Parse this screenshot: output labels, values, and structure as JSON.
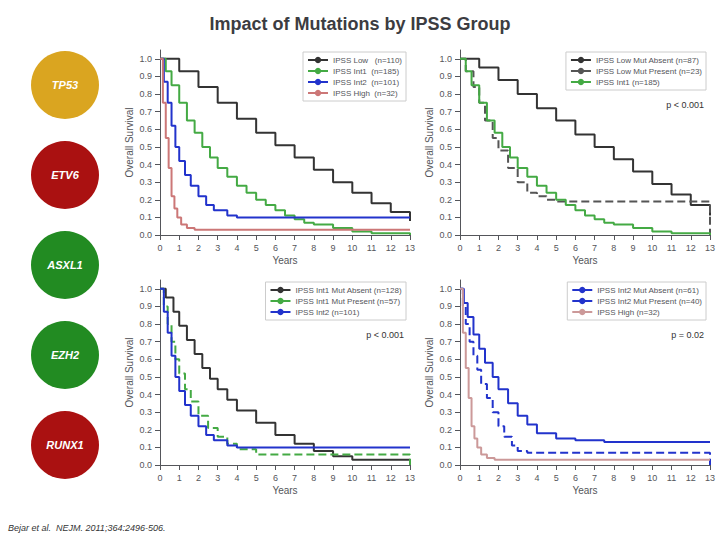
{
  "title": "Impact of Mutations by IPSS Group",
  "annotations": [
    {
      "text": "TP53",
      "marker": "circle",
      "color": "#DAA520"
    },
    {
      "text": "ETV6",
      "marker": "circle",
      "color": "#AA1111"
    },
    {
      "text": "ASXL1",
      "marker": "circle",
      "color": "#228B22"
    },
    {
      "text": "EZH2",
      "marker": "circle",
      "color": "#228B22"
    },
    {
      "text": "RUNX1",
      "marker": "circle",
      "color": "#AA1111"
    },
    {
      "text": "Bejar et al.  NEJM. 2011;364:2496-506."
    }
  ],
  "chart_data": [
    {
      "type": "step",
      "xlabel": "Years",
      "ylabel": "Overall Survival",
      "xlim": [
        0,
        13
      ],
      "ylim": [
        0.0,
        1.05
      ],
      "xticks": [
        0,
        1,
        2,
        3,
        4,
        5,
        6,
        7,
        8,
        9,
        10,
        11,
        12,
        13
      ],
      "yticks": [
        {
          "value": 0.0,
          "label": "0.0"
        },
        {
          "value": 0.1,
          "label": "0.1"
        },
        {
          "value": 0.2,
          "label": "0.2"
        },
        {
          "value": 0.3,
          "label": "0.3"
        },
        {
          "value": 0.4,
          "label": "0.4"
        },
        {
          "value": 0.5,
          "label": "0.5"
        },
        {
          "value": 0.6,
          "label": "0.6"
        },
        {
          "value": 0.7,
          "label": "0.7"
        },
        {
          "value": 0.8,
          "label": "0.8"
        },
        {
          "value": 0.9,
          "label": "0.9"
        },
        {
          "value": 1.0,
          "label": "1.0"
        }
      ],
      "grid": false,
      "legend": "upper right",
      "series": [
        {
          "name": "IPSS Low   (n=110)",
          "color": "#333333",
          "line_style": "solid",
          "x": [
            0,
            1,
            2,
            3,
            4,
            5,
            6,
            7,
            8,
            9,
            10,
            11,
            12,
            13
          ],
          "values": [
            1.0,
            0.93,
            0.84,
            0.75,
            0.66,
            0.58,
            0.51,
            0.44,
            0.37,
            0.3,
            0.24,
            0.18,
            0.13,
            0.08
          ]
        },
        {
          "name": "IPSS Int1  (n=185)",
          "color": "#44AA44",
          "line_style": "solid",
          "x": [
            0,
            0.3,
            0.6,
            1,
            1.4,
            1.8,
            2.2,
            2.6,
            3,
            3.5,
            4,
            4.5,
            5,
            5.5,
            6,
            6.5,
            7,
            7.5,
            8,
            9,
            10,
            11,
            12,
            13
          ],
          "values": [
            1.0,
            0.93,
            0.85,
            0.75,
            0.65,
            0.58,
            0.5,
            0.44,
            0.38,
            0.33,
            0.28,
            0.24,
            0.2,
            0.17,
            0.14,
            0.11,
            0.09,
            0.07,
            0.06,
            0.04,
            0.02,
            0.01,
            0.01,
            0.0
          ]
        },
        {
          "name": "IPSS Int2  (n=101)",
          "color": "#2233CC",
          "line_style": "solid",
          "x": [
            0,
            0.2,
            0.4,
            0.6,
            0.8,
            1.0,
            1.3,
            1.6,
            2.0,
            2.4,
            2.8,
            3.5,
            4,
            5,
            6,
            7,
            8,
            13
          ],
          "values": [
            1.0,
            0.87,
            0.75,
            0.62,
            0.5,
            0.42,
            0.34,
            0.28,
            0.22,
            0.17,
            0.14,
            0.11,
            0.1,
            0.1,
            0.1,
            0.1,
            0.1,
            0.1
          ]
        },
        {
          "name": "IPSS High  (n=32)",
          "color": "#CC7777",
          "line_style": "solid",
          "x": [
            0,
            0.15,
            0.3,
            0.45,
            0.6,
            0.75,
            0.9,
            1.1,
            1.4,
            1.8,
            2.5,
            3,
            13
          ],
          "values": [
            1.0,
            0.75,
            0.55,
            0.38,
            0.22,
            0.15,
            0.1,
            0.06,
            0.04,
            0.03,
            0.03,
            0.03,
            0.03
          ]
        }
      ]
    },
    {
      "type": "step",
      "xlabel": "Years",
      "ylabel": "Overall Survival",
      "xlim": [
        0,
        13
      ],
      "ylim": [
        0.0,
        1.05
      ],
      "xticks": [
        0,
        1,
        2,
        3,
        4,
        5,
        6,
        7,
        8,
        9,
        10,
        11,
        12,
        13
      ],
      "yticks": [
        {
          "value": 0.0,
          "label": "0.0"
        },
        {
          "value": 0.1,
          "label": "0.1"
        },
        {
          "value": 0.2,
          "label": "0.2"
        },
        {
          "value": 0.3,
          "label": "0.3"
        },
        {
          "value": 0.4,
          "label": "0.4"
        },
        {
          "value": 0.5,
          "label": "0.5"
        },
        {
          "value": 0.6,
          "label": "0.6"
        },
        {
          "value": 0.7,
          "label": "0.7"
        },
        {
          "value": 0.8,
          "label": "0.8"
        },
        {
          "value": 0.9,
          "label": "0.9"
        },
        {
          "value": 1.0,
          "label": "1.0"
        }
      ],
      "grid": false,
      "legend": "upper right",
      "annotations": [
        {
          "text": "p < 0.001"
        }
      ],
      "series": [
        {
          "name": "IPSS Low Mut Absent (n=87)",
          "color": "#333333",
          "line_style": "solid",
          "x": [
            0,
            1,
            2,
            3,
            4,
            5,
            6,
            7,
            8,
            9,
            10,
            11,
            12,
            13
          ],
          "values": [
            1.0,
            0.95,
            0.88,
            0.8,
            0.72,
            0.65,
            0.57,
            0.5,
            0.43,
            0.36,
            0.29,
            0.23,
            0.17,
            0.11
          ]
        },
        {
          "name": "IPSS Low Mut Present (n=23)",
          "color": "#555555",
          "line_style": "dashed",
          "x": [
            0,
            0.3,
            0.7,
            1.0,
            1.3,
            1.7,
            2.0,
            2.5,
            3.0,
            3.5,
            4.0,
            4.5,
            5.0,
            5.5,
            13
          ],
          "values": [
            1.0,
            0.93,
            0.84,
            0.75,
            0.65,
            0.55,
            0.48,
            0.38,
            0.3,
            0.24,
            0.22,
            0.2,
            0.19,
            0.19,
            0.0
          ]
        },
        {
          "name": "IPSS Int1 (n=185)",
          "color": "#44AA44",
          "line_style": "solid",
          "x": [
            0,
            0.3,
            0.6,
            1,
            1.4,
            1.8,
            2.2,
            2.6,
            3,
            3.5,
            4,
            4.5,
            5,
            5.5,
            6,
            6.5,
            7,
            7.5,
            8,
            9,
            10,
            11,
            12,
            13
          ],
          "values": [
            1.0,
            0.93,
            0.85,
            0.75,
            0.65,
            0.58,
            0.5,
            0.44,
            0.38,
            0.33,
            0.28,
            0.24,
            0.2,
            0.17,
            0.14,
            0.11,
            0.09,
            0.07,
            0.06,
            0.04,
            0.02,
            0.01,
            0.01,
            0.0
          ]
        }
      ]
    },
    {
      "type": "step",
      "xlabel": "Years",
      "ylabel": "Overall Survival",
      "xlim": [
        0,
        13
      ],
      "ylim": [
        0.0,
        1.05
      ],
      "xticks": [
        0,
        1,
        2,
        3,
        4,
        5,
        6,
        7,
        8,
        9,
        10,
        11,
        12,
        13
      ],
      "yticks": [
        {
          "value": 0.0,
          "label": "0.0"
        },
        {
          "value": 0.1,
          "label": "0.1"
        },
        {
          "value": 0.2,
          "label": "0.2"
        },
        {
          "value": 0.3,
          "label": "0.3"
        },
        {
          "value": 0.4,
          "label": "0.4"
        },
        {
          "value": 0.5,
          "label": "0.5"
        },
        {
          "value": 0.6,
          "label": "0.6"
        },
        {
          "value": 0.7,
          "label": "0.7"
        },
        {
          "value": 0.8,
          "label": "0.8"
        },
        {
          "value": 0.9,
          "label": "0.9"
        },
        {
          "value": 1.0,
          "label": "1.0"
        }
      ],
      "grid": false,
      "legend": "upper right",
      "annotations": [
        {
          "text": "p < 0.001"
        }
      ],
      "series": [
        {
          "name": "IPSS Int1 Mut Absent (n=128)",
          "color": "#333333",
          "line_style": "solid",
          "x": [
            0,
            0.3,
            0.7,
            1,
            1.4,
            1.8,
            2.2,
            2.6,
            3,
            3.5,
            4,
            5,
            6,
            7,
            8,
            9,
            10,
            13
          ],
          "values": [
            1.0,
            0.95,
            0.87,
            0.79,
            0.71,
            0.63,
            0.55,
            0.49,
            0.43,
            0.37,
            0.31,
            0.24,
            0.17,
            0.12,
            0.08,
            0.05,
            0.03,
            0.01
          ]
        },
        {
          "name": "IPSS Int1 Mut Present (n=57)",
          "color": "#44AA44",
          "line_style": "dashed",
          "x": [
            0,
            0.2,
            0.4,
            0.6,
            0.8,
            1.0,
            1.3,
            1.6,
            2.0,
            2.5,
            3.0,
            3.5,
            4,
            5,
            13
          ],
          "values": [
            1.0,
            0.9,
            0.8,
            0.7,
            0.6,
            0.52,
            0.43,
            0.36,
            0.28,
            0.21,
            0.16,
            0.12,
            0.09,
            0.06,
            0.0
          ]
        },
        {
          "name": "IPSS Int2 (n=101)",
          "color": "#2233CC",
          "line_style": "solid",
          "x": [
            0,
            0.2,
            0.4,
            0.6,
            0.8,
            1.0,
            1.3,
            1.6,
            2.0,
            2.4,
            2.8,
            3.5,
            4,
            5,
            6,
            7,
            8,
            13
          ],
          "values": [
            1.0,
            0.87,
            0.75,
            0.62,
            0.5,
            0.42,
            0.34,
            0.28,
            0.22,
            0.17,
            0.14,
            0.11,
            0.1,
            0.1,
            0.1,
            0.1,
            0.1,
            0.1
          ]
        }
      ]
    },
    {
      "type": "step",
      "xlabel": "Years",
      "ylabel": "Overall Survival",
      "xlim": [
        0,
        13
      ],
      "ylim": [
        0.0,
        1.05
      ],
      "xticks": [
        0,
        1,
        2,
        3,
        4,
        5,
        6,
        7,
        8,
        9,
        10,
        11,
        12,
        13
      ],
      "yticks": [
        {
          "value": 0.0,
          "label": "0.0"
        },
        {
          "value": 0.1,
          "label": "0.1"
        },
        {
          "value": 0.2,
          "label": "0.2"
        },
        {
          "value": 0.3,
          "label": "0.3"
        },
        {
          "value": 0.4,
          "label": "0.4"
        },
        {
          "value": 0.5,
          "label": "0.5"
        },
        {
          "value": 0.6,
          "label": "0.6"
        },
        {
          "value": 0.7,
          "label": "0.7"
        },
        {
          "value": 0.8,
          "label": "0.8"
        },
        {
          "value": 0.9,
          "label": "0.9"
        },
        {
          "value": 1.0,
          "label": "1.0"
        }
      ],
      "grid": false,
      "legend": "upper right",
      "annotations": [
        {
          "text": "p = 0.02"
        }
      ],
      "series": [
        {
          "name": "IPSS Int2 Mut Absent (n=61)",
          "color": "#2233CC",
          "line_style": "solid",
          "x": [
            0,
            0.2,
            0.4,
            0.7,
            1.0,
            1.3,
            1.7,
            2.0,
            2.5,
            3.0,
            3.5,
            4,
            5,
            6,
            7,
            7.5,
            8,
            13
          ],
          "values": [
            1.0,
            0.92,
            0.84,
            0.74,
            0.66,
            0.58,
            0.5,
            0.43,
            0.35,
            0.28,
            0.23,
            0.18,
            0.15,
            0.14,
            0.14,
            0.13,
            0.13,
            0.13
          ]
        },
        {
          "name": "IPSS Int2 Mut Present (n=40)",
          "color": "#2233CC",
          "line_style": "dashed",
          "x": [
            0,
            0.15,
            0.3,
            0.5,
            0.7,
            0.9,
            1.1,
            1.4,
            1.7,
            2.0,
            2.3,
            2.7,
            3.0,
            3.5,
            13
          ],
          "values": [
            1.0,
            0.9,
            0.8,
            0.7,
            0.62,
            0.54,
            0.46,
            0.38,
            0.3,
            0.22,
            0.16,
            0.11,
            0.08,
            0.07,
            0.0
          ]
        },
        {
          "name": "IPSS High (n=32)",
          "color": "#CC9999",
          "line_style": "solid",
          "x": [
            0,
            0.15,
            0.3,
            0.45,
            0.6,
            0.75,
            0.9,
            1.1,
            1.4,
            1.8,
            2.5,
            3,
            13
          ],
          "values": [
            1.0,
            0.75,
            0.55,
            0.38,
            0.22,
            0.15,
            0.1,
            0.06,
            0.04,
            0.03,
            0.03,
            0.03,
            0.03
          ]
        }
      ]
    }
  ]
}
